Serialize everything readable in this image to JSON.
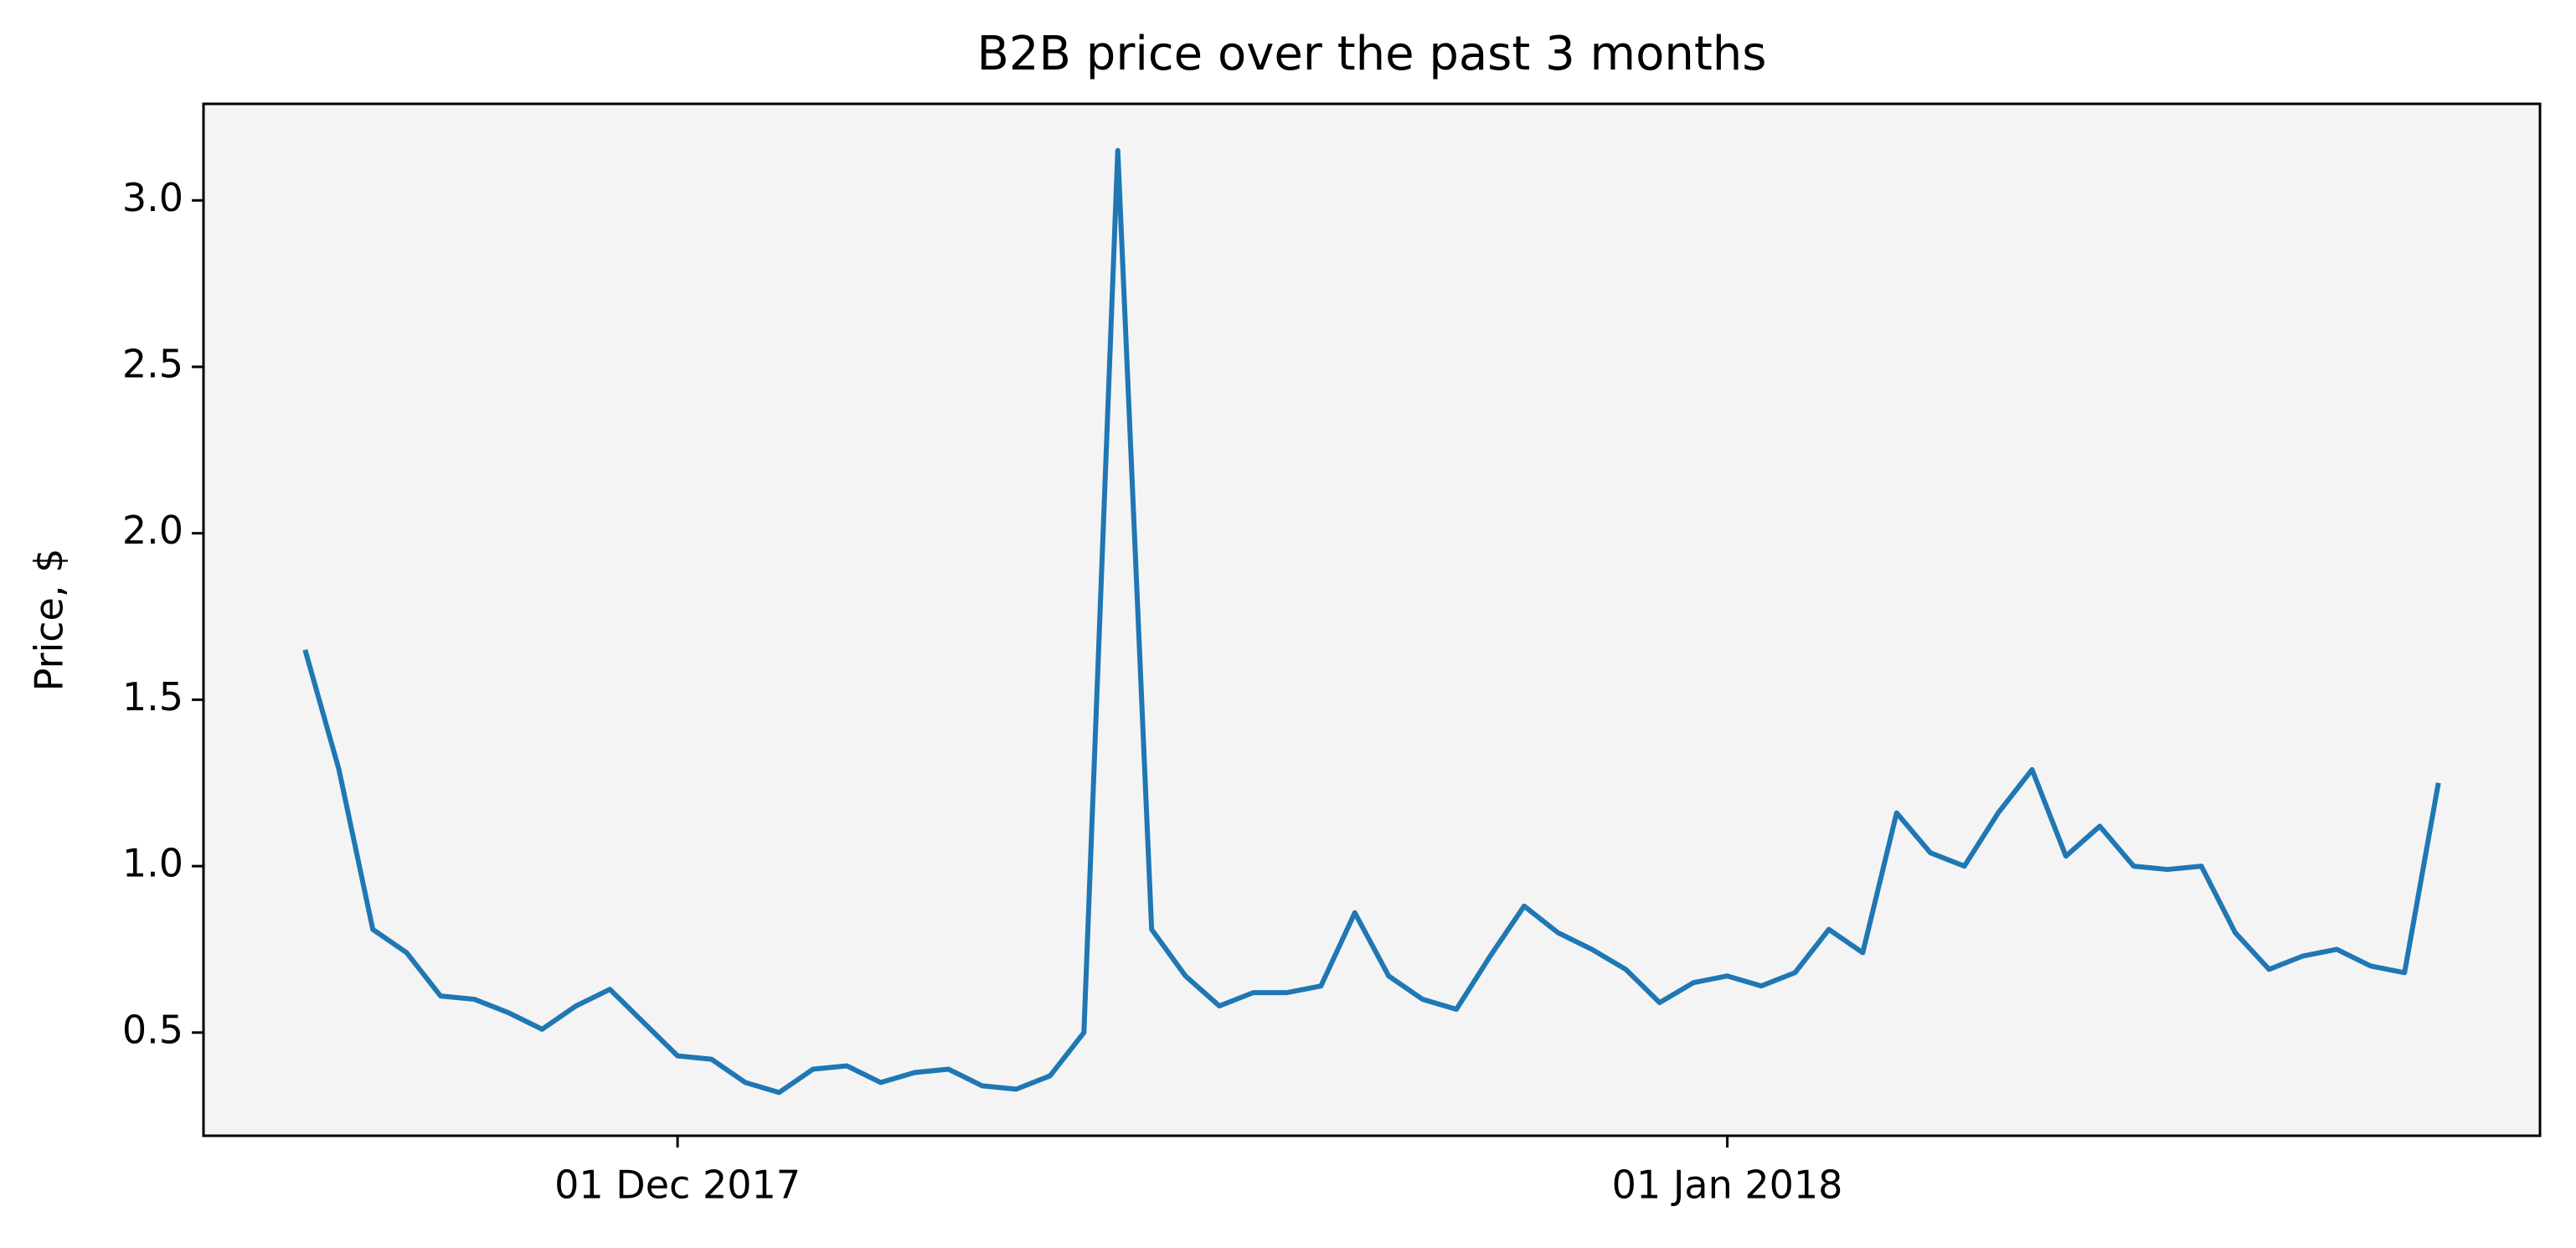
{
  "chart_data": {
    "type": "line",
    "title": "B2B price over the past 3 months",
    "y_label": "Price, $",
    "x": [
      "2017-11-20",
      "2017-11-21",
      "2017-11-22",
      "2017-11-23",
      "2017-11-24",
      "2017-11-25",
      "2017-11-26",
      "2017-11-27",
      "2017-11-28",
      "2017-11-29",
      "2017-11-30",
      "2017-12-01",
      "2017-12-02",
      "2017-12-03",
      "2017-12-04",
      "2017-12-05",
      "2017-12-06",
      "2017-12-07",
      "2017-12-08",
      "2017-12-09",
      "2017-12-10",
      "2017-12-11",
      "2017-12-12",
      "2017-12-13",
      "2017-12-14",
      "2017-12-15",
      "2017-12-16",
      "2017-12-17",
      "2017-12-18",
      "2017-12-19",
      "2017-12-20",
      "2017-12-21",
      "2017-12-22",
      "2017-12-23",
      "2017-12-24",
      "2017-12-25",
      "2017-12-26",
      "2017-12-27",
      "2017-12-28",
      "2017-12-29",
      "2017-12-30",
      "2017-12-31",
      "2018-01-01",
      "2018-01-02",
      "2018-01-03",
      "2018-01-04",
      "2018-01-05",
      "2018-01-06",
      "2018-01-07",
      "2018-01-08",
      "2018-01-09",
      "2018-01-10",
      "2018-01-11",
      "2018-01-12",
      "2018-01-13",
      "2018-01-14",
      "2018-01-15",
      "2018-01-16",
      "2018-01-17",
      "2018-01-18",
      "2018-01-19",
      "2018-01-20",
      "2018-01-21",
      "2018-01-22"
    ],
    "values": [
      1.65,
      1.29,
      0.81,
      0.74,
      0.61,
      0.6,
      0.56,
      0.51,
      0.58,
      0.63,
      0.53,
      0.43,
      0.42,
      0.35,
      0.32,
      0.39,
      0.4,
      0.35,
      0.38,
      0.39,
      0.34,
      0.33,
      0.37,
      0.5,
      3.15,
      0.81,
      0.67,
      0.58,
      0.62,
      0.62,
      0.64,
      0.86,
      0.67,
      0.6,
      0.57,
      0.73,
      0.88,
      0.8,
      0.75,
      0.69,
      0.59,
      0.65,
      0.67,
      0.64,
      0.68,
      0.81,
      0.74,
      1.16,
      1.04,
      1.0,
      1.16,
      1.29,
      1.03,
      1.12,
      1.0,
      0.99,
      1.0,
      0.8,
      0.69,
      0.73,
      0.75,
      0.7,
      0.68,
      1.25
    ],
    "color": "#1f77b4",
    "plot_background": "#f4f4f4",
    "xlim": [
      "2017-11-17",
      "2018-01-25"
    ],
    "xticks": [
      {
        "value": "2017-12-01",
        "label": "01 Dec 2017"
      },
      {
        "value": "2018-01-01",
        "label": "01 Jan 2018"
      }
    ],
    "ylim": [
      0.19,
      3.29
    ],
    "yticks": [
      0.5,
      {
        "value": 1,
        "label": "1.0"
      },
      1.5,
      {
        "value": 2,
        "label": "2.0"
      },
      2.5,
      {
        "value": 3,
        "label": "3.0"
      }
    ],
    "grid": false
  }
}
